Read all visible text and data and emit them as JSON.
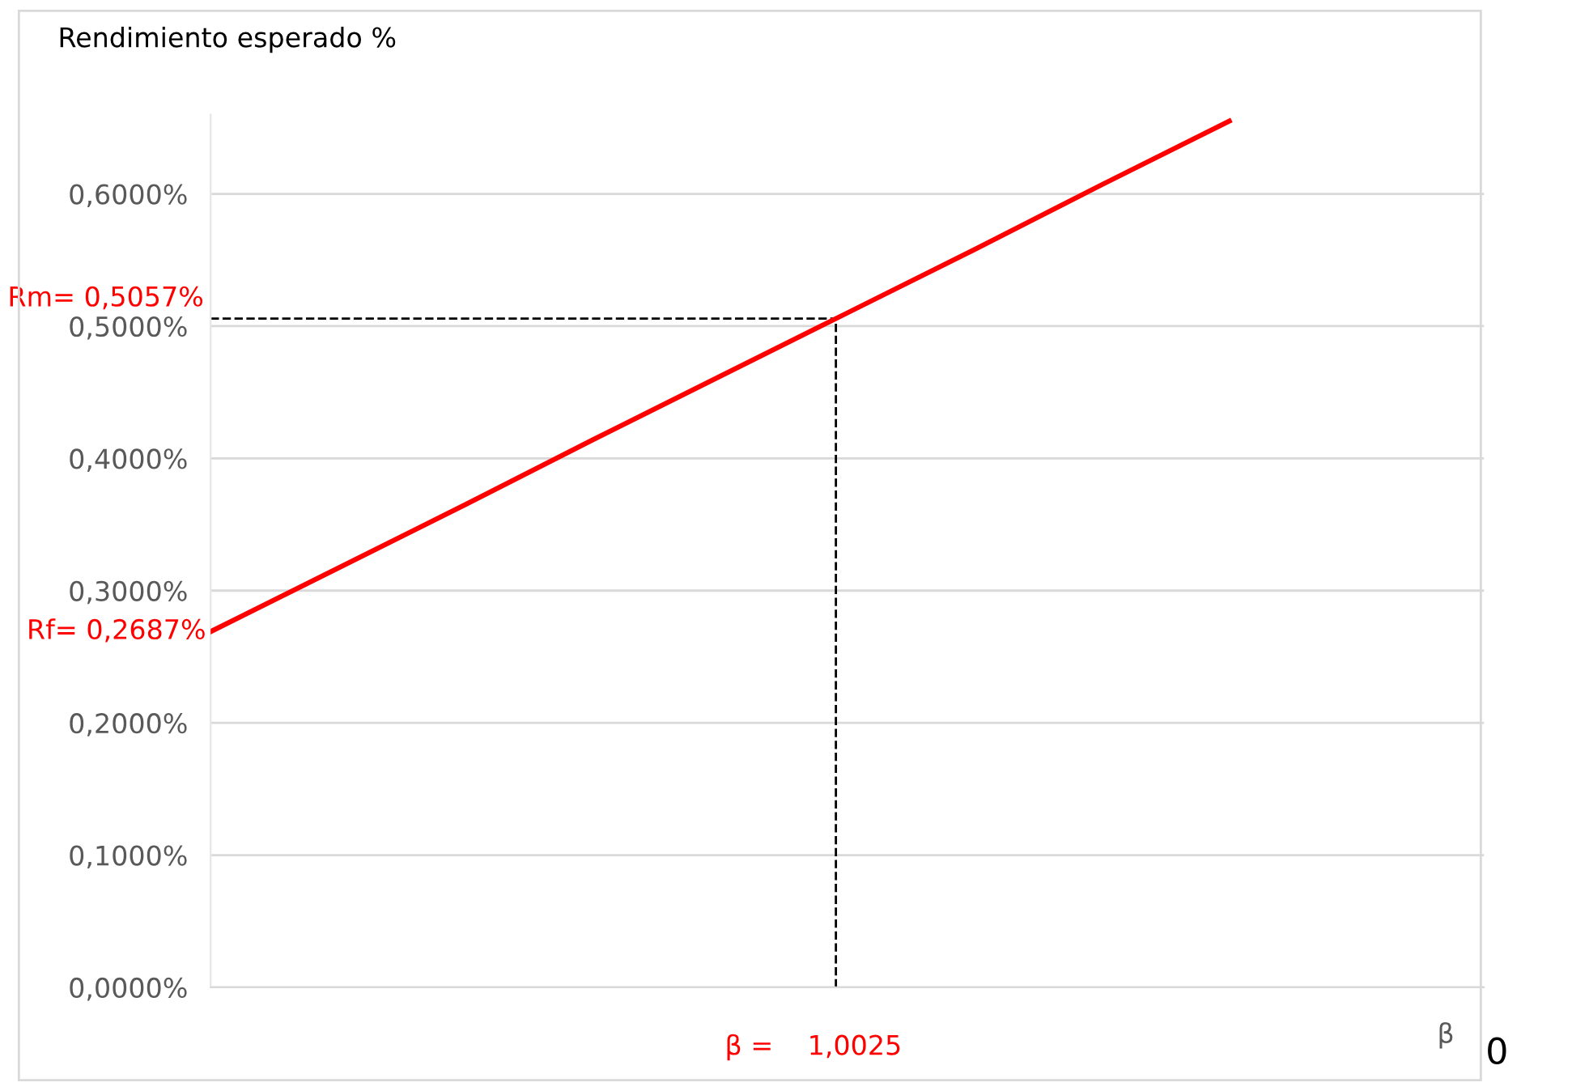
{
  "chart_data": {
    "type": "line",
    "title": "Rendimiento esperado %",
    "xlabel": "β",
    "categories": [
      null,
      null,
      null,
      null,
      null,
      null,
      null,
      null,
      null,
      null,
      null
    ],
    "series": [
      {
        "color": "#ff0000",
        "values": [
          0.269,
          0.317,
          0.365,
          0.414,
          0.462,
          0.51,
          0.558,
          0.607,
          0.655,
          null,
          null
        ]
      }
    ],
    "ylim": [
      0,
      0.66
    ],
    "yticks": [
      {
        "value": 0,
        "label": "0,0000%"
      },
      {
        "value": 0.1,
        "label": "0,1000%"
      },
      {
        "value": 0.2,
        "label": "0,2000%"
      },
      {
        "value": 0.3,
        "label": "0,3000%"
      },
      {
        "value": 0.4,
        "label": "0,4000%"
      },
      {
        "value": 0.5,
        "label": "0,5000%"
      },
      {
        "value": 0.6,
        "label": "0,6000%"
      }
    ],
    "tick_labels": "y",
    "grid": "y",
    "marker": "none",
    "line_style": "solid",
    "ref_lines": [
      {
        "axis": "y",
        "value": 0.5057,
        "label": "Rm= 0,5057%",
        "color": "#000000",
        "line_style": "dashed"
      }
    ],
    "annotations": [
      "Rf= 0,2687%",
      "β =    1,0025",
      "0"
    ]
  }
}
